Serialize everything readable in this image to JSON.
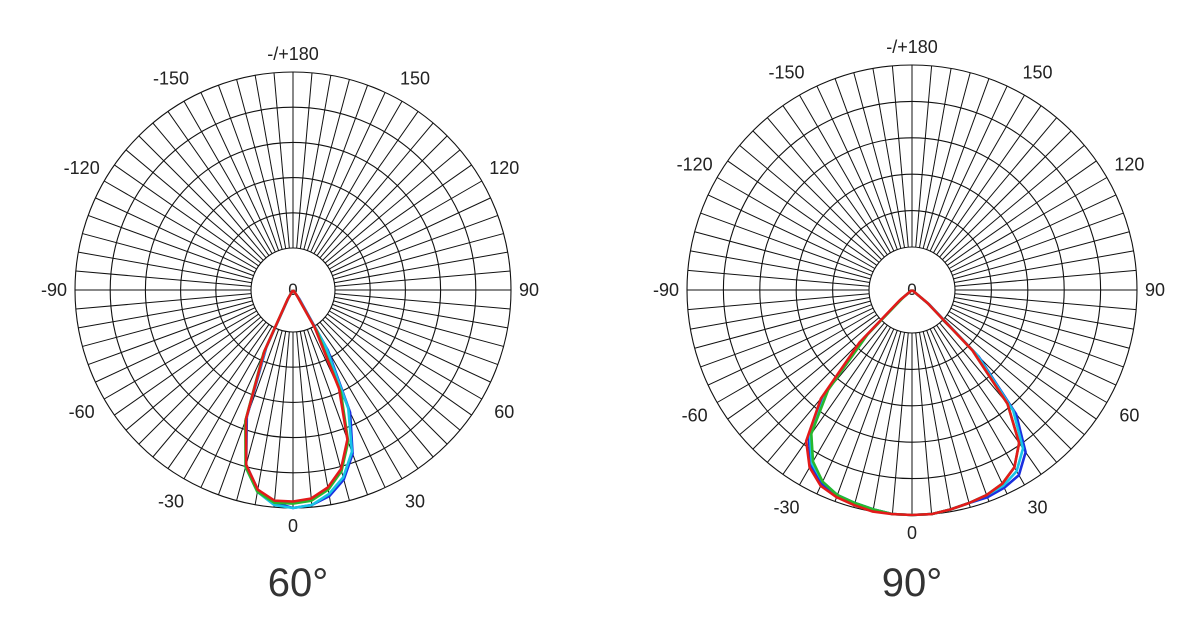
{
  "chart_data": [
    {
      "type": "polar-line",
      "title": "60°",
      "angle_labels": [
        {
          "angle": 180,
          "text": "-/+180"
        },
        {
          "angle": -150,
          "text": "-150"
        },
        {
          "angle": 150,
          "text": "150"
        },
        {
          "angle": -120,
          "text": "-120"
        },
        {
          "angle": 120,
          "text": "120"
        },
        {
          "angle": -90,
          "text": "-90"
        },
        {
          "angle": 90,
          "text": "90"
        },
        {
          "angle": -60,
          "text": "-60"
        },
        {
          "angle": 60,
          "text": "60"
        },
        {
          "angle": -30,
          "text": "-30"
        },
        {
          "angle": 30,
          "text": "30"
        },
        {
          "angle": 0,
          "text": "0"
        }
      ],
      "center_label": "0",
      "rmax": 1.0,
      "rings": [
        0.2,
        0.4,
        0.6,
        0.8,
        1.0
      ],
      "spoke_step_deg": 5,
      "series": [
        {
          "color": "#1a2fe0",
          "points": [
            [
              -30,
              0.04
            ],
            [
              -25,
              0.29
            ],
            [
              -20,
              0.62
            ],
            [
              -15,
              0.83
            ],
            [
              -10,
              0.93
            ],
            [
              -5,
              0.98
            ],
            [
              0,
              1.0
            ],
            [
              5,
              0.99
            ],
            [
              10,
              0.96
            ],
            [
              15,
              0.9
            ],
            [
              20,
              0.8
            ],
            [
              25,
              0.62
            ],
            [
              30,
              0.32
            ],
            [
              35,
              0.05
            ]
          ]
        },
        {
          "color": "#19c3e6",
          "points": [
            [
              -30,
              0.04
            ],
            [
              -25,
              0.3
            ],
            [
              -20,
              0.63
            ],
            [
              -15,
              0.84
            ],
            [
              -10,
              0.94
            ],
            [
              -5,
              0.99
            ],
            [
              0,
              1.0
            ],
            [
              5,
              0.99
            ],
            [
              10,
              0.95
            ],
            [
              15,
              0.89
            ],
            [
              20,
              0.79
            ],
            [
              25,
              0.6
            ],
            [
              30,
              0.3
            ],
            [
              35,
              0.04
            ]
          ]
        },
        {
          "color": "#27b82e",
          "points": [
            [
              -30,
              0.05
            ],
            [
              -25,
              0.32
            ],
            [
              -20,
              0.64
            ],
            [
              -15,
              0.84
            ],
            [
              -10,
              0.94
            ],
            [
              -5,
              0.98
            ],
            [
              0,
              0.98
            ],
            [
              5,
              0.97
            ],
            [
              10,
              0.93
            ],
            [
              15,
              0.86
            ],
            [
              20,
              0.74
            ],
            [
              25,
              0.52
            ],
            [
              30,
              0.22
            ],
            [
              35,
              0.03
            ]
          ]
        },
        {
          "color": "#e31a1a",
          "points": [
            [
              -30,
              0.05
            ],
            [
              -25,
              0.31
            ],
            [
              -20,
              0.63
            ],
            [
              -15,
              0.83
            ],
            [
              -10,
              0.93
            ],
            [
              -5,
              0.97
            ],
            [
              0,
              0.97
            ],
            [
              5,
              0.96
            ],
            [
              10,
              0.92
            ],
            [
              15,
              0.85
            ],
            [
              20,
              0.73
            ],
            [
              25,
              0.5
            ],
            [
              30,
              0.2
            ],
            [
              35,
              0.03
            ]
          ]
        }
      ]
    },
    {
      "type": "polar-line",
      "title": "90°",
      "angle_labels": [
        {
          "angle": 180,
          "text": "-/+180"
        },
        {
          "angle": -150,
          "text": "-150"
        },
        {
          "angle": 150,
          "text": "150"
        },
        {
          "angle": -120,
          "text": "-120"
        },
        {
          "angle": 120,
          "text": "120"
        },
        {
          "angle": -90,
          "text": "-90"
        },
        {
          "angle": 90,
          "text": "90"
        },
        {
          "angle": -60,
          "text": "-60"
        },
        {
          "angle": 60,
          "text": "60"
        },
        {
          "angle": -30,
          "text": "-30"
        },
        {
          "angle": 30,
          "text": "30"
        },
        {
          "angle": 0,
          "text": "0"
        }
      ],
      "center_label": "0",
      "rmax": 1.0,
      "rings": [
        0.2,
        0.4,
        0.6,
        0.8,
        1.0
      ],
      "spoke_step_deg": 5,
      "series": [
        {
          "color": "#1a2fe0",
          "points": [
            [
              -50,
              0.06
            ],
            [
              -45,
              0.3
            ],
            [
              -40,
              0.6
            ],
            [
              -35,
              0.8
            ],
            [
              -30,
              0.9
            ],
            [
              -25,
              0.95
            ],
            [
              -20,
              0.97
            ],
            [
              -15,
              0.98
            ],
            [
              -10,
              0.99
            ],
            [
              -5,
              1.0
            ],
            [
              0,
              1.0
            ],
            [
              5,
              1.0
            ],
            [
              10,
              0.99
            ],
            [
              15,
              0.98
            ],
            [
              20,
              0.98
            ],
            [
              25,
              0.97
            ],
            [
              30,
              0.95
            ],
            [
              35,
              0.88
            ],
            [
              40,
              0.72
            ],
            [
              45,
              0.42
            ],
            [
              50,
              0.1
            ]
          ]
        },
        {
          "color": "#19c3e6",
          "points": [
            [
              -50,
              0.06
            ],
            [
              -45,
              0.29
            ],
            [
              -40,
              0.59
            ],
            [
              -35,
              0.79
            ],
            [
              -30,
              0.89
            ],
            [
              -25,
              0.94
            ],
            [
              -20,
              0.97
            ],
            [
              -15,
              0.98
            ],
            [
              -10,
              0.99
            ],
            [
              -5,
              1.0
            ],
            [
              0,
              1.0
            ],
            [
              5,
              1.0
            ],
            [
              10,
              0.99
            ],
            [
              15,
              0.98
            ],
            [
              20,
              0.97
            ],
            [
              25,
              0.96
            ],
            [
              30,
              0.93
            ],
            [
              35,
              0.86
            ],
            [
              40,
              0.7
            ],
            [
              45,
              0.41
            ],
            [
              50,
              0.1
            ]
          ]
        },
        {
          "color": "#27b82e",
          "points": [
            [
              -50,
              0.05
            ],
            [
              -45,
              0.28
            ],
            [
              -40,
              0.58
            ],
            [
              -35,
              0.78
            ],
            [
              -30,
              0.88
            ],
            [
              -25,
              0.94
            ],
            [
              -20,
              0.97
            ],
            [
              -15,
              0.98
            ],
            [
              -10,
              0.99
            ],
            [
              -5,
              1.0
            ],
            [
              0,
              1.0
            ],
            [
              5,
              1.0
            ],
            [
              10,
              0.99
            ],
            [
              15,
              0.98
            ],
            [
              20,
              0.97
            ],
            [
              25,
              0.95
            ],
            [
              30,
              0.91
            ],
            [
              35,
              0.83
            ],
            [
              40,
              0.66
            ],
            [
              45,
              0.38
            ],
            [
              50,
              0.09
            ]
          ]
        },
        {
          "color": "#e31a1a",
          "points": [
            [
              -50,
              0.07
            ],
            [
              -45,
              0.33
            ],
            [
              -40,
              0.63
            ],
            [
              -35,
              0.82
            ],
            [
              -30,
              0.91
            ],
            [
              -25,
              0.96
            ],
            [
              -20,
              0.98
            ],
            [
              -15,
              0.99
            ],
            [
              -10,
              1.0
            ],
            [
              -5,
              1.0
            ],
            [
              0,
              1.0
            ],
            [
              5,
              1.0
            ],
            [
              10,
              0.99
            ],
            [
              15,
              0.98
            ],
            [
              20,
              0.97
            ],
            [
              25,
              0.95
            ],
            [
              30,
              0.91
            ],
            [
              35,
              0.83
            ],
            [
              40,
              0.66
            ],
            [
              45,
              0.38
            ],
            [
              50,
              0.09
            ]
          ]
        }
      ]
    }
  ]
}
